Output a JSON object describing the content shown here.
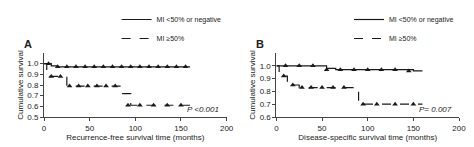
{
  "chart_data": [
    {
      "type": "step",
      "title": "A",
      "xlabel": "Recurrence-free survival time (months)",
      "ylabel": "Cumulative survival",
      "xlim": [
        0,
        200
      ],
      "ylim": [
        0.5,
        1.1
      ],
      "xticks": [
        0,
        50,
        100,
        150,
        200
      ],
      "yticks": [
        0.5,
        0.6,
        0.7,
        0.8,
        0.9,
        {
          "value": 1.0,
          "label": "1.0"
        }
      ],
      "annotations": [
        "P <0.001"
      ],
      "grid": false,
      "legend": "upper right",
      "series": [
        {
          "name": "MI <50% or negative",
          "color": "#1a1a1a",
          "line_style": "solid",
          "marker": "triangle",
          "x": [
            0,
            2,
            4,
            8,
            15,
            20,
            25,
            30,
            40,
            50,
            60,
            70,
            80,
            90,
            100,
            110,
            120,
            130,
            140,
            150,
            160
          ],
          "values": [
            1.0,
            1.0,
            1.0,
            0.98,
            0.97,
            0.97,
            0.97,
            0.97,
            0.97,
            0.97,
            0.97,
            0.97,
            0.97,
            0.97,
            0.97,
            0.97,
            0.97,
            0.97,
            0.97,
            0.97,
            0.97
          ],
          "markers_x": [
            5,
            15,
            25,
            35,
            45,
            55,
            65,
            75,
            85,
            95,
            105,
            115,
            125,
            135,
            145,
            155
          ],
          "markers_values": [
            1.0,
            0.97,
            0.97,
            0.97,
            0.97,
            0.97,
            0.97,
            0.97,
            0.97,
            0.97,
            0.97,
            0.97,
            0.97,
            0.97,
            0.97,
            0.97
          ]
        },
        {
          "name": "MI ≥50%",
          "color": "#1a1a1a",
          "line_style": "dashed",
          "marker": "triangle",
          "x": [
            0,
            3,
            6,
            10,
            15,
            20,
            25,
            30,
            40,
            50,
            60,
            70,
            80,
            85,
            90,
            95,
            100,
            120,
            140,
            150,
            160
          ],
          "values": [
            1.0,
            0.93,
            0.88,
            0.88,
            0.88,
            0.88,
            0.79,
            0.79,
            0.79,
            0.79,
            0.79,
            0.79,
            0.79,
            0.72,
            0.72,
            0.61,
            0.61,
            0.61,
            0.61,
            0.61,
            0.61
          ],
          "markers_x": [
            8,
            18,
            28,
            38,
            48,
            58,
            68,
            78,
            92,
            105,
            120,
            135,
            150
          ],
          "markers_values": [
            0.88,
            0.88,
            0.79,
            0.79,
            0.79,
            0.79,
            0.79,
            0.79,
            0.61,
            0.61,
            0.61,
            0.61,
            0.61
          ]
        }
      ]
    },
    {
      "type": "step",
      "title": "B",
      "xlabel": "Disease-specific survival time (months)",
      "ylabel": "Cumulative survival",
      "xlim": [
        0,
        200
      ],
      "ylim": [
        0.6,
        1.1
      ],
      "xticks": [
        0,
        50,
        100,
        150,
        200
      ],
      "yticks": [
        0.6,
        0.7,
        0.8,
        0.9,
        {
          "value": 1.0,
          "label": "1.0"
        }
      ],
      "annotations": [
        "P= 0.007"
      ],
      "grid": false,
      "legend": "upper right",
      "series": [
        {
          "name": "MI <50% or negative",
          "color": "#1a1a1a",
          "line_style": "solid",
          "marker": "triangle",
          "x": [
            0,
            5,
            15,
            30,
            45,
            55,
            65,
            75,
            90,
            100,
            110,
            120,
            130,
            140,
            150,
            160
          ],
          "values": [
            1.0,
            1.0,
            1.0,
            1.0,
            1.0,
            0.98,
            0.97,
            0.97,
            0.97,
            0.97,
            0.97,
            0.97,
            0.97,
            0.97,
            0.96,
            0.96
          ],
          "markers_x": [
            10,
            25,
            40,
            55,
            70,
            85,
            100,
            115,
            130,
            145
          ],
          "markers_values": [
            1.0,
            1.0,
            1.0,
            0.97,
            0.97,
            0.97,
            0.97,
            0.97,
            0.97,
            0.96
          ]
        },
        {
          "name": "MI ≥50%",
          "color": "#1a1a1a",
          "line_style": "dashed",
          "marker": "triangle",
          "x": [
            0,
            3,
            7,
            12,
            18,
            25,
            35,
            45,
            55,
            65,
            75,
            85,
            90,
            95,
            100,
            120,
            140,
            150,
            160
          ],
          "values": [
            1.0,
            0.95,
            0.92,
            0.88,
            0.85,
            0.83,
            0.83,
            0.83,
            0.83,
            0.83,
            0.83,
            0.83,
            0.7,
            0.7,
            0.7,
            0.7,
            0.7,
            0.7,
            0.7
          ],
          "markers_x": [
            8,
            18,
            28,
            38,
            50,
            62,
            74,
            95,
            110,
            130,
            150
          ],
          "markers_values": [
            0.92,
            0.85,
            0.83,
            0.83,
            0.83,
            0.83,
            0.83,
            0.7,
            0.7,
            0.7,
            0.7
          ]
        }
      ]
    }
  ]
}
